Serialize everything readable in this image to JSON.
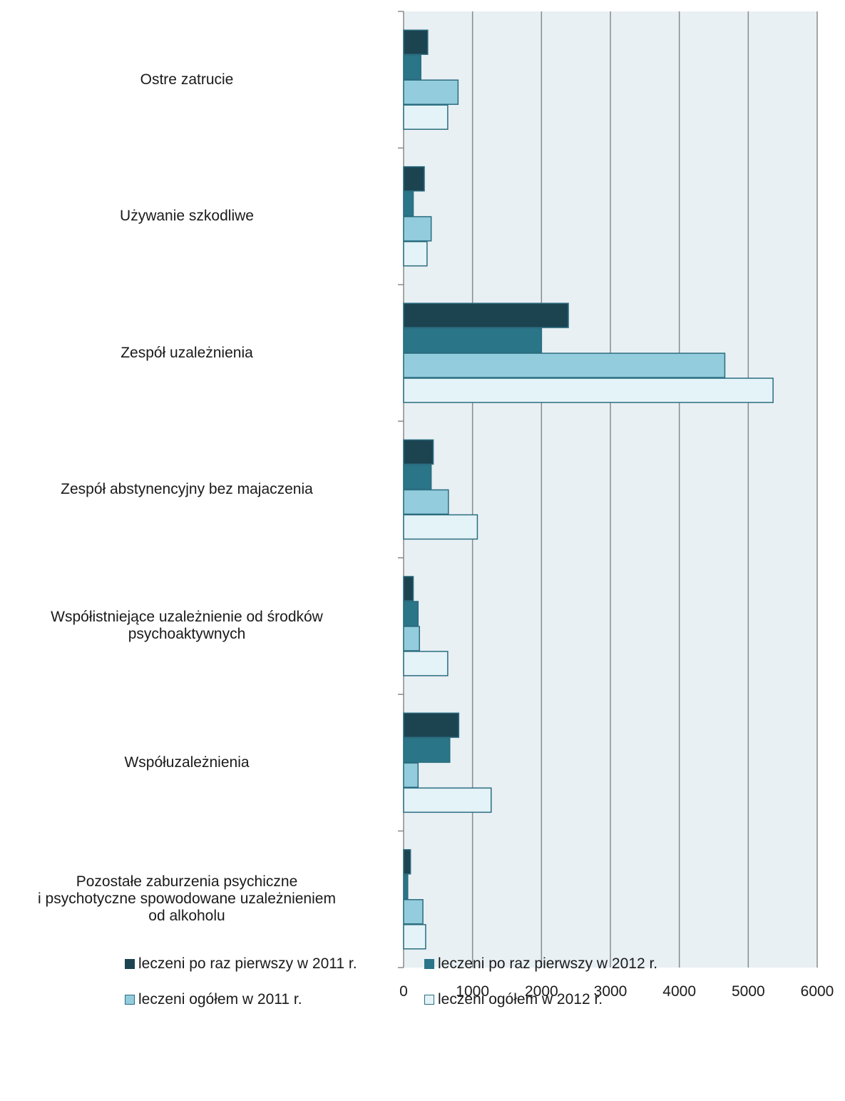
{
  "chart_data": {
    "type": "bar",
    "orientation": "horizontal",
    "categories": [
      "Ostre zatrucie",
      "Używanie szkodliwe",
      "Zespół uzależnienia",
      "Zespół abstynencyjny bez majaczenia",
      "Współistniejące uzależnienie od środków psychoaktywnych",
      "Współuzależnienia",
      "Pozostałe zaburzenia psychiczne i psychotyczne spowodowane uzależnieniem od alkoholu"
    ],
    "category_lines": [
      [
        "Ostre zatrucie"
      ],
      [
        "Używanie szkodliwe"
      ],
      [
        "Zespół uzależnienia"
      ],
      [
        "Zespół abstynencyjny bez majaczenia"
      ],
      [
        "Współistniejące uzależnienie od środków",
        "psychoaktywnych"
      ],
      [
        "Współuzależnienia"
      ],
      [
        "Pozostałe zaburzenia psychiczne",
        "i psychotyczne spowodowane uzależnieniem",
        "od alkoholu"
      ]
    ],
    "series": [
      {
        "name": "leczeni po raz pierwszy w 2011 r.",
        "color": "#1c4350",
        "values": [
          350,
          300,
          2390,
          430,
          140,
          800,
          100
        ]
      },
      {
        "name": "leczeni po raz pierwszy w 2012 r.",
        "color": "#2a7587",
        "values": [
          250,
          140,
          2000,
          400,
          210,
          670,
          60
        ]
      },
      {
        "name": "leczeni ogółem w 2011 r.",
        "color": "#93ccdc",
        "values": [
          790,
          400,
          4660,
          650,
          230,
          210,
          280
        ]
      },
      {
        "name": "leczeni ogółem w 2012 r.",
        "color": "#e4f3f7",
        "values": [
          640,
          340,
          5360,
          1070,
          640,
          1270,
          320
        ]
      }
    ],
    "xlim": [
      0,
      6000
    ],
    "xticks": [
      "0",
      "1000",
      "2000",
      "3000",
      "4000",
      "5000",
      "6000"
    ],
    "grid": true,
    "plot_background": "#e8f0f4",
    "bar_border_color": "#2b6d80",
    "legend_position": "bottom"
  }
}
